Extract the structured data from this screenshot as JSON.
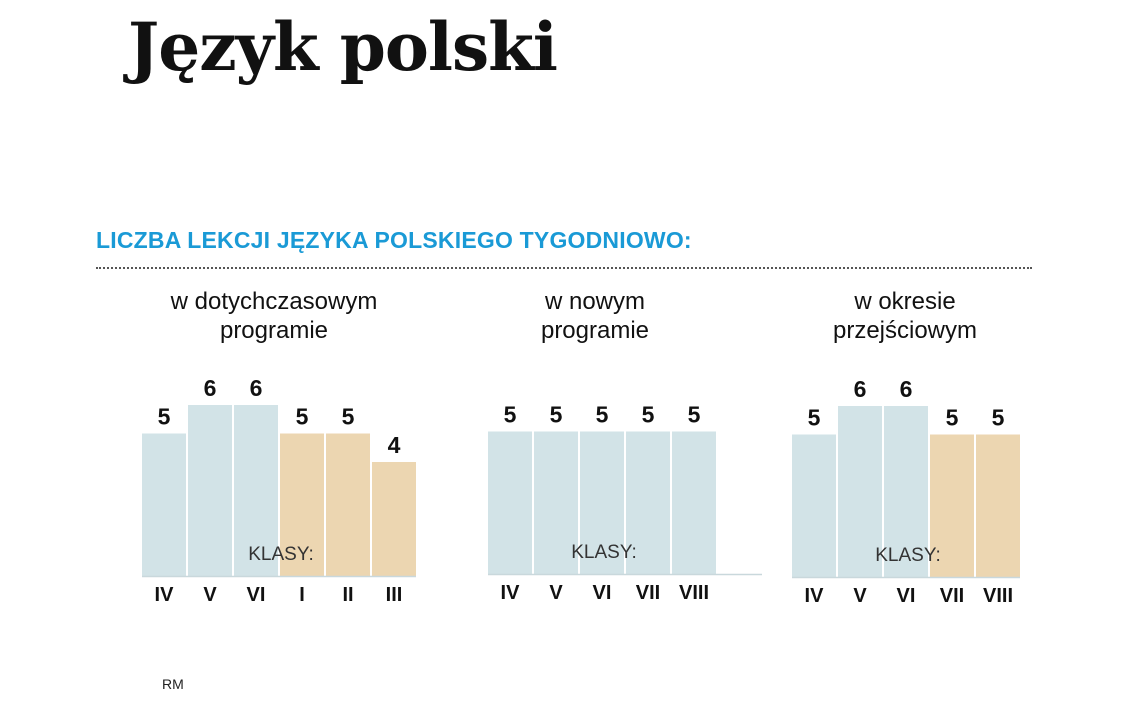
{
  "title": "Język polski",
  "subtitle": "LICZBA LEKCJI JĘZYKA POLSKIEGO TYGODNIOWO:",
  "credit": "RM",
  "colors": {
    "blue": "#d2e3e7",
    "orange": "#ecd6b1",
    "accent": "#1a9ad6"
  },
  "chart_data": [
    {
      "type": "bar",
      "title": "w dotychczasowym programie",
      "title_lines": [
        "w dotychczasowym",
        "programie"
      ],
      "axis_label": "KLASY:",
      "categories": [
        "IV",
        "V",
        "VI",
        "I",
        "II",
        "III"
      ],
      "values": [
        5,
        6,
        6,
        5,
        5,
        4
      ],
      "bar_colors": [
        "blue",
        "blue",
        "blue",
        "orange",
        "orange",
        "orange"
      ],
      "ylim": [
        0,
        6
      ]
    },
    {
      "type": "bar",
      "title": "w nowym programie",
      "title_lines": [
        "w nowym",
        "programie"
      ],
      "axis_label": "KLASY:",
      "categories": [
        "IV",
        "V",
        "VI",
        "VII",
        "VIII"
      ],
      "values": [
        5,
        5,
        5,
        5,
        5
      ],
      "bar_colors": [
        "blue",
        "blue",
        "blue",
        "blue",
        "blue"
      ],
      "ylim": [
        0,
        6
      ]
    },
    {
      "type": "bar",
      "title": "w okresie przejściowym",
      "title_lines": [
        "w okresie",
        "przejściowym"
      ],
      "axis_label": "KLASY:",
      "categories": [
        "IV",
        "V",
        "VI",
        "VII",
        "VIII"
      ],
      "values": [
        5,
        6,
        6,
        5,
        5
      ],
      "bar_colors": [
        "blue",
        "blue",
        "blue",
        "orange",
        "orange"
      ],
      "ylim": [
        0,
        6
      ]
    }
  ]
}
